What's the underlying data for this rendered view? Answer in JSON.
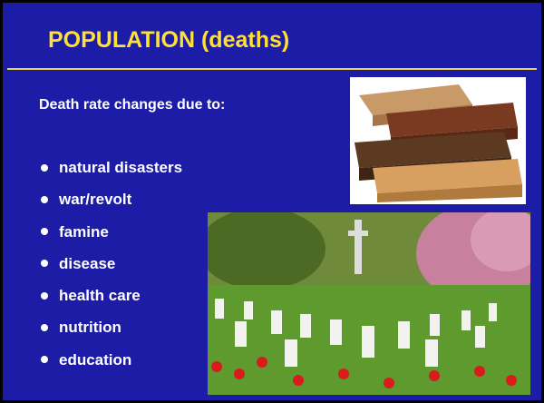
{
  "slide": {
    "title": "POPULATION (deaths)",
    "intro": "Death rate changes due to:",
    "bullets": [
      "natural disasters",
      "war/revolt",
      "famine",
      "disease",
      "health care",
      "nutrition",
      "education"
    ]
  }
}
